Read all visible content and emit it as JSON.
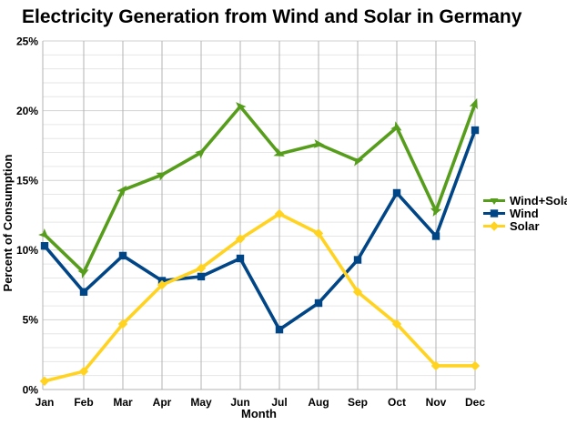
{
  "chart_data": {
    "type": "line",
    "title": "Electricity Generation from Wind and Solar in Germany",
    "x_categories": [
      "Jan",
      "Feb",
      "Mar",
      "Apr",
      "May",
      "Jun",
      "Jul",
      "Aug",
      "Sep",
      "Oct",
      "Nov",
      "Dec"
    ],
    "xlabel": "Month",
    "ylabel": "Percent of Consumption",
    "ylim": [
      0,
      25
    ],
    "y_major_step": 5,
    "y_minor_step": 1,
    "y_tick_labels": [
      "0%",
      "5%",
      "10%",
      "15%",
      "20%",
      "25%"
    ],
    "grid": true,
    "legend_position": "right",
    "series": [
      {
        "name": "Wind+Solar",
        "color": "#579D1C",
        "marker": "arrow",
        "values": [
          11.1,
          8.4,
          14.3,
          15.4,
          17.0,
          20.3,
          16.9,
          17.6,
          16.4,
          18.8,
          12.8,
          20.5
        ]
      },
      {
        "name": "Wind",
        "color": "#004586",
        "marker": "square",
        "values": [
          10.3,
          7.0,
          9.6,
          7.8,
          8.1,
          9.4,
          4.3,
          6.2,
          9.3,
          14.1,
          11.0,
          18.6
        ]
      },
      {
        "name": "Solar",
        "color": "#FFD320",
        "marker": "diamond",
        "values": [
          0.6,
          1.3,
          4.7,
          7.5,
          8.7,
          10.8,
          12.6,
          11.2,
          7.0,
          4.7,
          1.7,
          1.7
        ]
      }
    ]
  },
  "colors": {
    "background": "#FFFFFF",
    "text": "#000000",
    "grid_minor": "#E6E6E6",
    "grid_major": "#D2D2D2",
    "grid_vertical": "#B3B3B3",
    "axis": "#B3B3B3"
  }
}
